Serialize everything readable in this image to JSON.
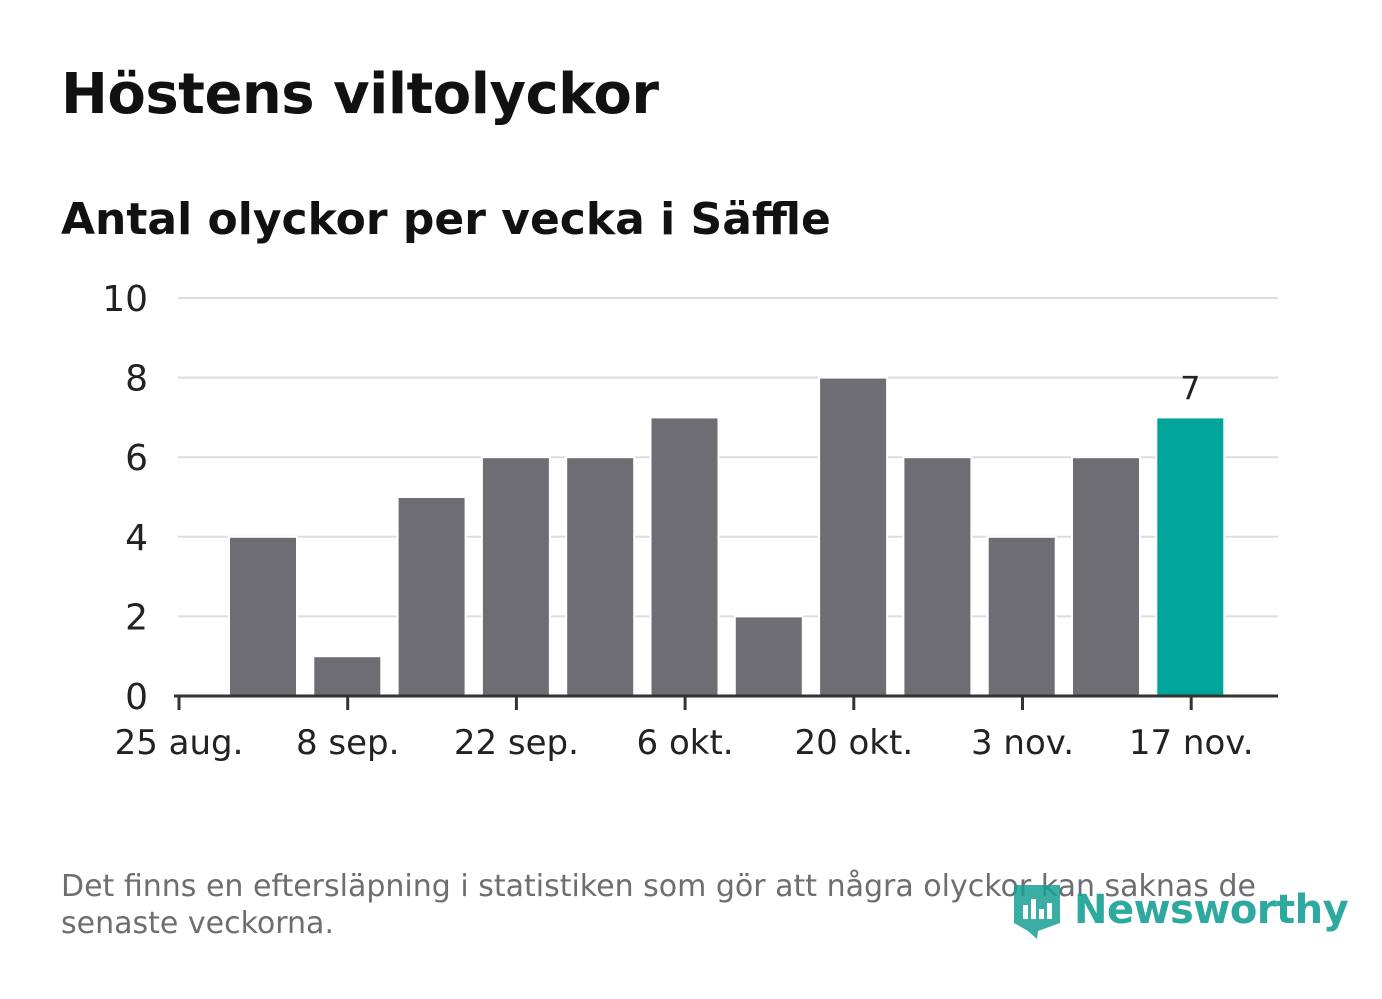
{
  "title": "Höstens viltolyckor",
  "subtitle": "Antal olyckor per vecka i Säffle",
  "footnote": "Det finns en eftersläpning i statistiken som gör att några olyckor kan saknas de senaste veckorna.",
  "brand": {
    "name": "Newsworthy",
    "icon": "newsworthy-logo-icon"
  },
  "colors": {
    "bar": "#6e6d73",
    "highlight": "#00a49a",
    "grid": "#dddddd",
    "axis": "#333333",
    "text": "#222222"
  },
  "chart_data": {
    "type": "bar",
    "title": "Höstens viltolyckor",
    "subtitle": "Antal olyckor per vecka i Säffle",
    "xlabel": "",
    "ylabel": "",
    "ylim": [
      0,
      10
    ],
    "yticks": [
      "0",
      "2",
      "4",
      "6",
      "8",
      "10"
    ],
    "xtick_labels": [
      "25 aug.",
      "8 sep.",
      "22 sep.",
      "6 okt.",
      "20 okt.",
      "3 nov.",
      "17 nov."
    ],
    "values": [
      4,
      1,
      5,
      6,
      6,
      7,
      2,
      8,
      6,
      4,
      6,
      7
    ],
    "highlight_index": 11,
    "highlight_label": "7",
    "grid": true
  }
}
